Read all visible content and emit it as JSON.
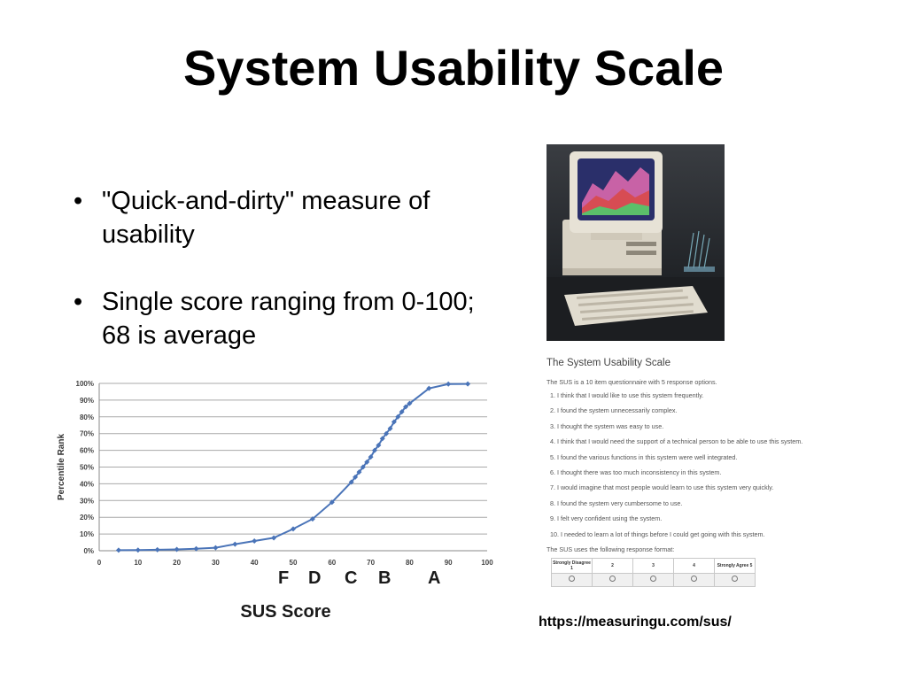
{
  "slide": {
    "title": "System Usability Scale",
    "bullets": [
      "\"Quick-and-dirty\" measure of usability",
      "Single score ranging from 0-100; 68 is average"
    ],
    "bullet_glyph": "•",
    "source_url": "https://measuringu.com/sus/"
  },
  "chart_data": {
    "type": "line",
    "title": "",
    "xlabel": "SUS Score",
    "ylabel": "Percentile Rank",
    "xlim": [
      0,
      100
    ],
    "ylim": [
      0,
      100
    ],
    "x_ticks": [
      "0",
      "10",
      "20",
      "30",
      "40",
      "50",
      "60",
      "70",
      "80",
      "90",
      "100"
    ],
    "y_ticks": [
      "0%",
      "10%",
      "20%",
      "30%",
      "40%",
      "50%",
      "60%",
      "70%",
      "80%",
      "90%",
      "100%"
    ],
    "grid": "horizontal",
    "line_color": "#4a74b8",
    "grades": [
      {
        "label": "F",
        "x": 47
      },
      {
        "label": "D",
        "x": 55
      },
      {
        "label": "C",
        "x": 65
      },
      {
        "label": "B",
        "x": 72
      },
      {
        "label": "A",
        "x": 85
      }
    ],
    "series": [
      {
        "x": [
          5,
          10,
          15,
          20,
          25,
          30,
          35,
          40,
          45,
          50,
          55,
          60,
          65,
          66,
          67,
          68,
          69,
          70,
          71,
          72,
          73,
          74,
          75,
          76,
          77,
          78,
          79,
          80,
          85,
          90,
          95
        ],
        "values": [
          0.3,
          0.4,
          0.6,
          0.8,
          1.2,
          1.8,
          3.9,
          5.8,
          7.7,
          13,
          19,
          29,
          41,
          44,
          47,
          50,
          53,
          56,
          60,
          63,
          67,
          70,
          73,
          77,
          80,
          83,
          86,
          88,
          97,
          99.6,
          99.7
        ]
      }
    ]
  },
  "sus_form": {
    "heading": "The System Usability Scale",
    "intro": "The SUS is a 10 item questionnaire with 5 response options.",
    "questions": [
      "1. I think that I would like to use this system frequently.",
      "2. I found the system unnecessarily complex.",
      "3. I thought the system was easy to use.",
      "4. I think that I would need the support of a technical person to be able to use this system.",
      "5. I found the various functions in this system were well integrated.",
      "6. I thought there was too much inconsistency in this system.",
      "7. I would imagine that most people would learn to use this system very quickly.",
      "8. I found the system very cumbersome to use.",
      "9. I felt very confident using the system.",
      "10. I needed to learn a lot of things before I could get going with this system."
    ],
    "format_note": "The SUS uses the following response format:",
    "scale_header": [
      "Strongly Disagree 1",
      "2",
      "3",
      "4",
      "Strongly Agree 5"
    ]
  },
  "photo": {
    "icon": "retro-computer-icon",
    "colors": {
      "case": "#e7e2d6",
      "screen_bg": "#2a2f6a",
      "wave_red": "#d84a4a",
      "wave_green": "#5bbf6a",
      "wave_pink": "#e46bb0"
    }
  }
}
